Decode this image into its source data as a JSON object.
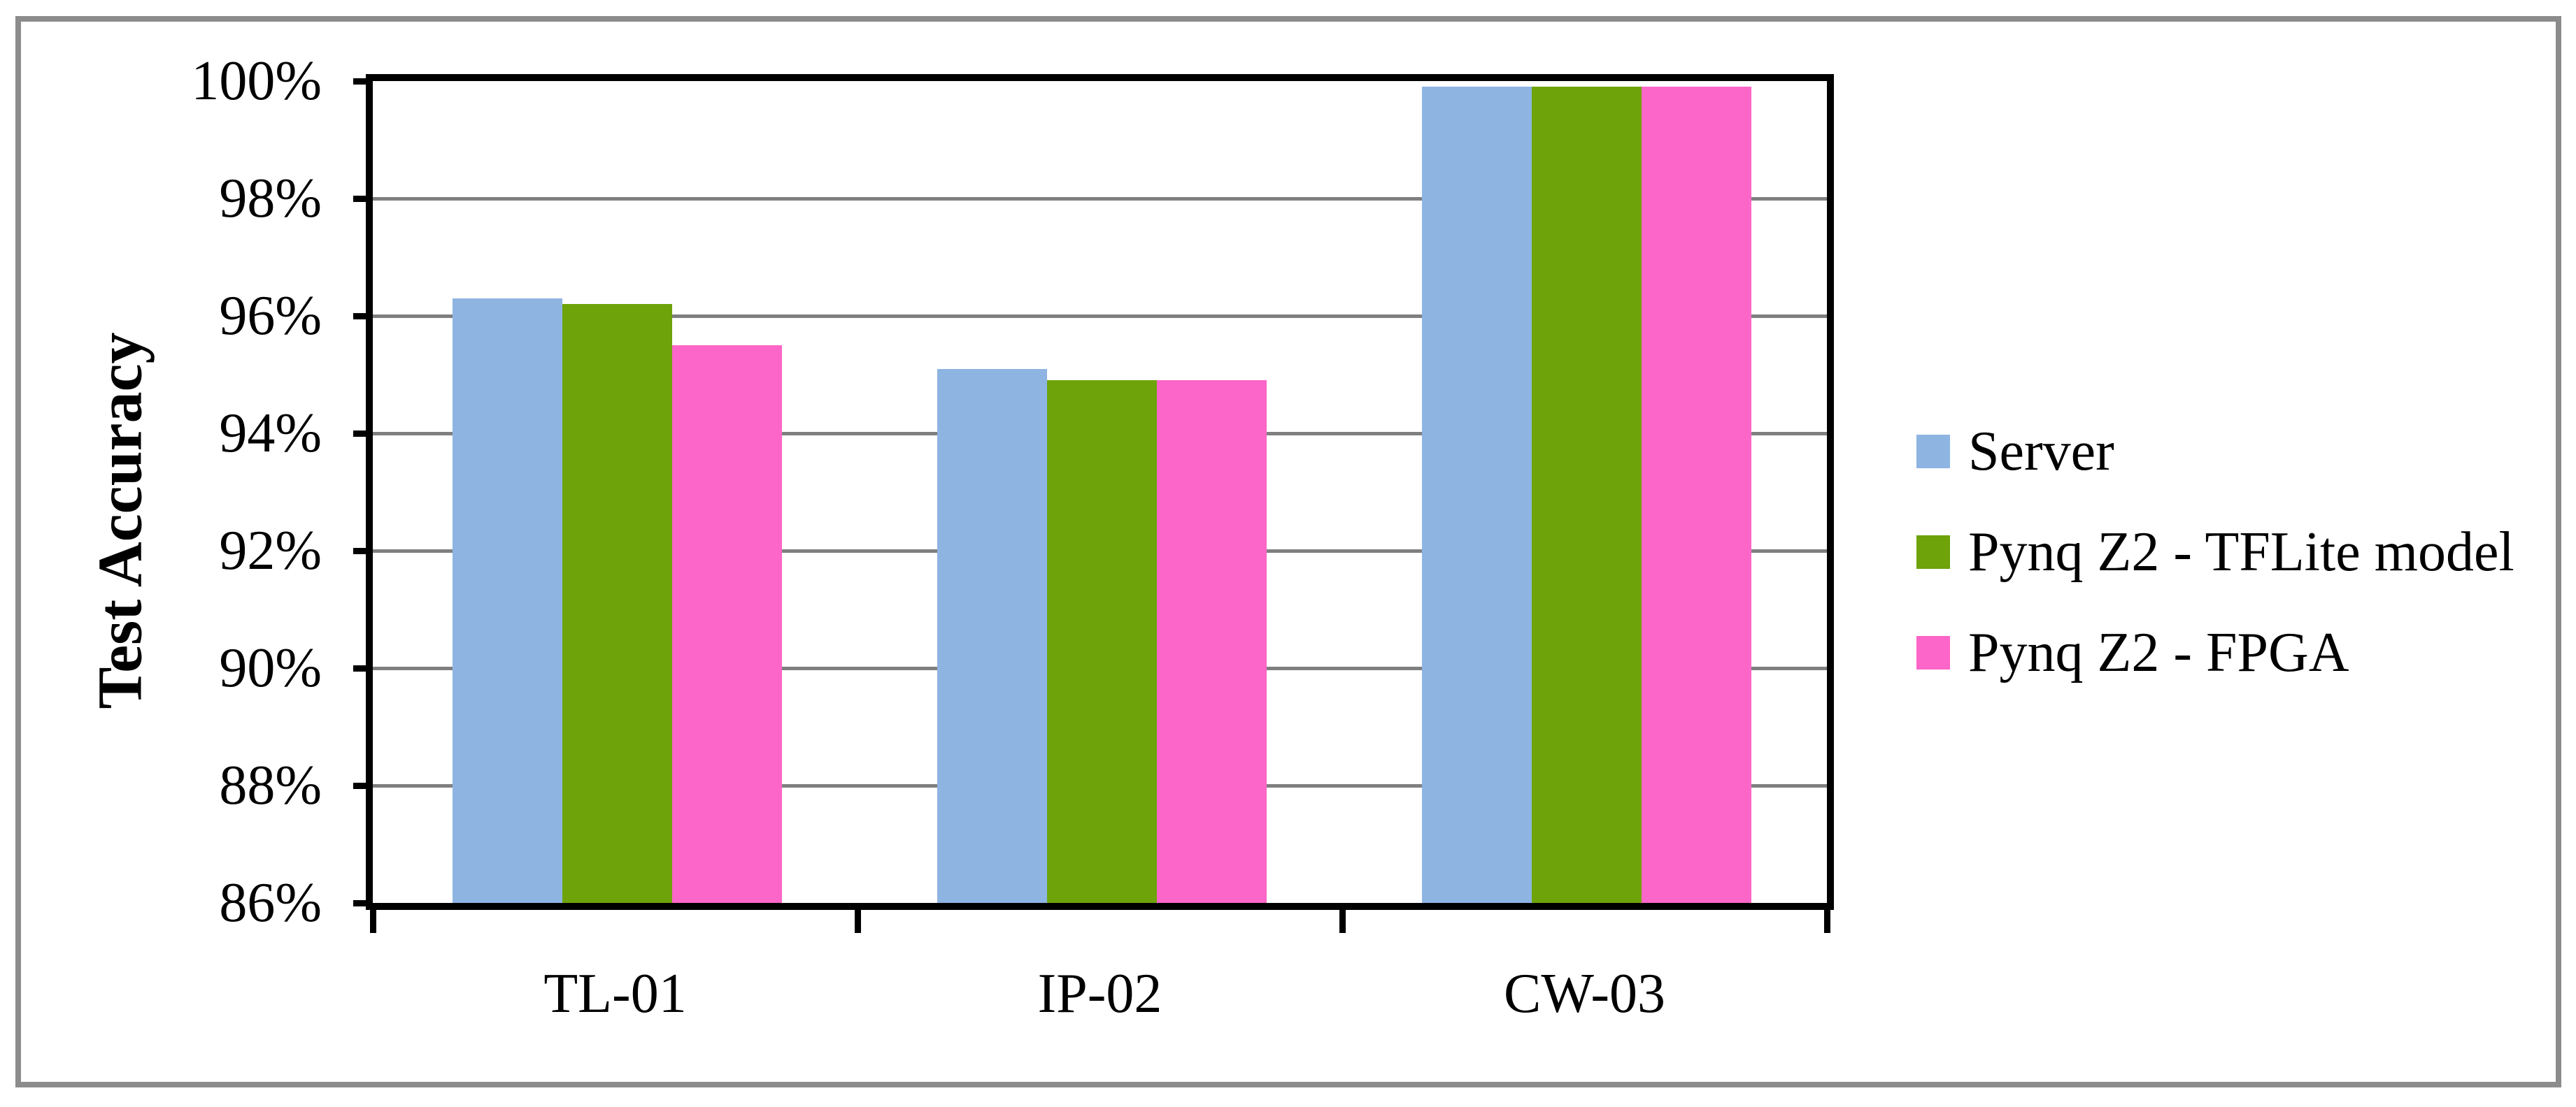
{
  "figure": {
    "background": "#ffffff",
    "border_color": "#8c8c8c"
  },
  "chart_data": {
    "type": "bar",
    "title": "",
    "ylabel": "Test Accuracy",
    "xlabel": "",
    "categories": [
      "TL-01",
      "IP-02",
      "CW-03"
    ],
    "series": [
      {
        "name": "Server",
        "color": "#8EB4E2",
        "values": [
          96.3,
          95.1,
          99.9
        ]
      },
      {
        "name": "Pynq Z2 - TFLite model",
        "color": "#6EA30A",
        "values": [
          96.2,
          94.9,
          99.9
        ]
      },
      {
        "name": "Pynq Z2 - FPGA",
        "color": "#FC66C8",
        "values": [
          95.5,
          94.9,
          99.9
        ]
      }
    ],
    "ylim": [
      86,
      100
    ],
    "ytick_step": 2,
    "ytick_labels": [
      "86%",
      "88%",
      "90%",
      "92%",
      "94%",
      "96%",
      "98%",
      "100%"
    ],
    "grid": true,
    "gridline_color": "#7f7f7f",
    "axis_color": "#000000",
    "legend_position": "right",
    "legend": [
      "Server",
      "Pynq Z2 - TFLite model",
      "Pynq Z2 - FPGA"
    ]
  }
}
